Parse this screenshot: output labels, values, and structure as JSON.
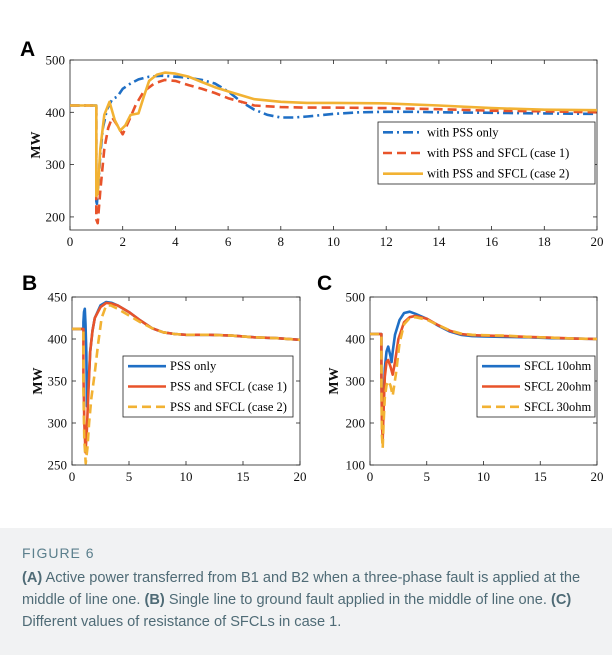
{
  "panels": {
    "A": {
      "letter": "A"
    },
    "B": {
      "letter": "B"
    },
    "C": {
      "letter": "C"
    }
  },
  "caption": {
    "title": "FIGURE 6",
    "A_label": "(A)",
    "A_text": " Active power transferred from B1 and B2 when a three-phase fault is applied at the middle of line one. ",
    "B_label": "(B)",
    "B_text": " Single line to ground fault applied in the middle of line one. ",
    "C_label": "(C)",
    "C_text": " Different values of resistance of SFCLs in case 1."
  },
  "colors": {
    "blue": "#1f6fc5",
    "red": "#e8532a",
    "yellow": "#f2b233"
  },
  "chart_data": [
    {
      "id": "A",
      "type": "line",
      "ylabel": "MW",
      "xlim": [
        0,
        20
      ],
      "ylim": [
        175,
        500
      ],
      "xticks": [
        0,
        2,
        4,
        6,
        8,
        10,
        12,
        14,
        16,
        18,
        20
      ],
      "yticks": [
        200,
        300,
        400,
        500
      ],
      "legend": "inside-right",
      "series": [
        {
          "name": "with PSS only",
          "color": "#1f6fc5",
          "dash": "dashdot",
          "x": [
            0,
            1.0,
            1.0,
            1.02,
            1.08,
            1.15,
            1.25,
            1.4,
            1.6,
            1.8,
            2.0,
            2.3,
            2.6,
            3.0,
            3.5,
            4.0,
            4.5,
            5.0,
            5.5,
            6.0,
            6.5,
            7.0,
            7.5,
            8.0,
            8.5,
            9.0,
            10,
            11,
            12,
            13,
            14,
            16,
            18,
            20
          ],
          "y": [
            413,
            413,
            230,
            225,
            265,
            320,
            370,
            405,
            425,
            430,
            445,
            455,
            463,
            468,
            470,
            468,
            466,
            462,
            455,
            440,
            420,
            405,
            395,
            390,
            390,
            392,
            397,
            400,
            401,
            401,
            400,
            399,
            398,
            397
          ]
        },
        {
          "name": "with PSS and SFCL (case 1)",
          "color": "#e8532a",
          "dash": "dash",
          "x": [
            0,
            1.0,
            1.0,
            1.05,
            1.15,
            1.3,
            1.45,
            1.6,
            1.8,
            2.0,
            2.2,
            2.5,
            2.8,
            3.2,
            3.6,
            4.0,
            4.5,
            5.0,
            5.5,
            6.0,
            7.0,
            8.0,
            9.0,
            10,
            12,
            14,
            16,
            18,
            20
          ],
          "y": [
            413,
            413,
            195,
            188,
            250,
            330,
            370,
            390,
            375,
            358,
            380,
            415,
            440,
            455,
            462,
            460,
            452,
            445,
            437,
            427,
            413,
            410,
            409,
            409,
            408,
            406,
            403,
            402,
            400
          ]
        },
        {
          "name": "with PSS and SFCL (case 2)",
          "color": "#f2b233",
          "dash": "solid",
          "x": [
            0,
            1.0,
            1.0,
            1.05,
            1.15,
            1.3,
            1.5,
            1.7,
            1.9,
            2.1,
            2.3,
            2.6,
            2.8,
            3.0,
            3.3,
            3.6,
            4.0,
            4.5,
            5.0,
            5.5,
            6.0,
            7.0,
            8.0,
            9.0,
            10,
            12,
            14,
            16,
            18,
            20
          ],
          "y": [
            413,
            413,
            240,
            245,
            330,
            395,
            420,
            385,
            365,
            375,
            395,
            398,
            430,
            460,
            472,
            476,
            474,
            468,
            458,
            448,
            440,
            425,
            420,
            418,
            418,
            417,
            413,
            408,
            405,
            404
          ]
        }
      ]
    },
    {
      "id": "B",
      "type": "line",
      "ylabel": "MW",
      "xlim": [
        0,
        20
      ],
      "ylim": [
        250,
        450
      ],
      "xticks": [
        0,
        5,
        10,
        15,
        20
      ],
      "yticks": [
        250,
        300,
        350,
        400,
        450
      ],
      "legend": "inside-right",
      "series": [
        {
          "name": "PSS only",
          "color": "#1f6fc5",
          "dash": "solid",
          "x": [
            0,
            1.0,
            1.0,
            1.05,
            1.12,
            1.18,
            1.25,
            1.32,
            1.45,
            1.6,
            1.8,
            2.0,
            2.5,
            3.0,
            3.5,
            4.0,
            5.0,
            6.0,
            7.0,
            8.0,
            9.0,
            10,
            12,
            14,
            16,
            18,
            20
          ],
          "y": [
            412,
            412,
            420,
            432,
            436,
            418,
            385,
            320,
            345,
            385,
            410,
            425,
            440,
            444,
            443,
            440,
            432,
            422,
            413,
            408,
            406,
            405,
            405,
            404,
            402,
            401,
            399
          ]
        },
        {
          "name": "PSS and SFCL (case 1)",
          "color": "#e8532a",
          "dash": "solid",
          "x": [
            0,
            1.0,
            1.0,
            1.08,
            1.18,
            1.3,
            1.45,
            1.6,
            1.8,
            2.0,
            2.5,
            3.0,
            3.5,
            4.0,
            5.0,
            6.0,
            7.0,
            8.0,
            9.0,
            10,
            12,
            14,
            16,
            18,
            20
          ],
          "y": [
            412,
            412,
            360,
            300,
            265,
            290,
            340,
            385,
            410,
            425,
            438,
            443,
            442,
            440,
            432,
            422,
            413,
            408,
            406,
            405,
            405,
            404,
            402,
            401,
            399
          ]
        },
        {
          "name": "PSS and SFCL (case 2)",
          "color": "#f2b233",
          "dash": "dash",
          "x": [
            0,
            1.0,
            1.0,
            1.08,
            1.2,
            1.35,
            1.5,
            1.7,
            2.0,
            2.3,
            2.6,
            3.0,
            3.4,
            4.0,
            5.0,
            6.0,
            7.0,
            8.0,
            9.0,
            10,
            12,
            14,
            16,
            18,
            20
          ],
          "y": [
            412,
            412,
            340,
            280,
            252,
            270,
            300,
            330,
            360,
            395,
            425,
            440,
            440,
            436,
            428,
            420,
            413,
            408,
            406,
            405,
            405,
            404,
            402,
            401,
            399
          ]
        }
      ]
    },
    {
      "id": "C",
      "type": "line",
      "ylabel": "MW",
      "xlim": [
        0,
        20
      ],
      "ylim": [
        100,
        500
      ],
      "xticks": [
        0,
        5,
        10,
        15,
        20
      ],
      "yticks": [
        100,
        200,
        300,
        400,
        500
      ],
      "legend": "inside-right",
      "series": [
        {
          "name": "SFCL 10ohm",
          "color": "#1f6fc5",
          "dash": "solid",
          "x": [
            0,
            1.0,
            1.0,
            1.05,
            1.12,
            1.2,
            1.3,
            1.45,
            1.6,
            1.8,
            1.9,
            2.0,
            2.2,
            2.6,
            3.0,
            3.5,
            4.0,
            5.0,
            6.0,
            7.0,
            8.0,
            9.0,
            10,
            12,
            14,
            16,
            18,
            20
          ],
          "y": [
            412,
            412,
            320,
            220,
            180,
            250,
            330,
            370,
            382,
            360,
            345,
            370,
            410,
            445,
            462,
            465,
            460,
            448,
            432,
            418,
            410,
            407,
            406,
            405,
            404,
            402,
            401,
            400
          ]
        },
        {
          "name": "SFCL 20ohm",
          "color": "#e8532a",
          "dash": "solid",
          "x": [
            0,
            1.0,
            1.0,
            1.05,
            1.12,
            1.2,
            1.3,
            1.45,
            1.6,
            1.8,
            2.0,
            2.2,
            2.5,
            3.0,
            3.5,
            4.0,
            5.0,
            6.0,
            7.0,
            8.0,
            9.0,
            10,
            12,
            14,
            16,
            18,
            20
          ],
          "y": [
            412,
            412,
            310,
            200,
            160,
            230,
            310,
            345,
            350,
            335,
            315,
            345,
            400,
            440,
            452,
            455,
            448,
            433,
            420,
            412,
            409,
            408,
            407,
            405,
            403,
            401,
            400
          ]
        },
        {
          "name": "SFCL 30ohm",
          "color": "#f2b233",
          "dash": "dash",
          "x": [
            0,
            1.0,
            1.0,
            1.05,
            1.12,
            1.2,
            1.3,
            1.45,
            1.6,
            1.8,
            2.0,
            2.3,
            2.6,
            3.0,
            3.5,
            4.0,
            5.0,
            6.0,
            7.0,
            8.0,
            9.0,
            10,
            12,
            14,
            16,
            18,
            20
          ],
          "y": [
            412,
            412,
            290,
            170,
            140,
            200,
            260,
            290,
            300,
            290,
            265,
            320,
            390,
            435,
            450,
            452,
            446,
            433,
            421,
            413,
            410,
            409,
            408,
            405,
            403,
            401,
            400
          ]
        }
      ]
    }
  ]
}
